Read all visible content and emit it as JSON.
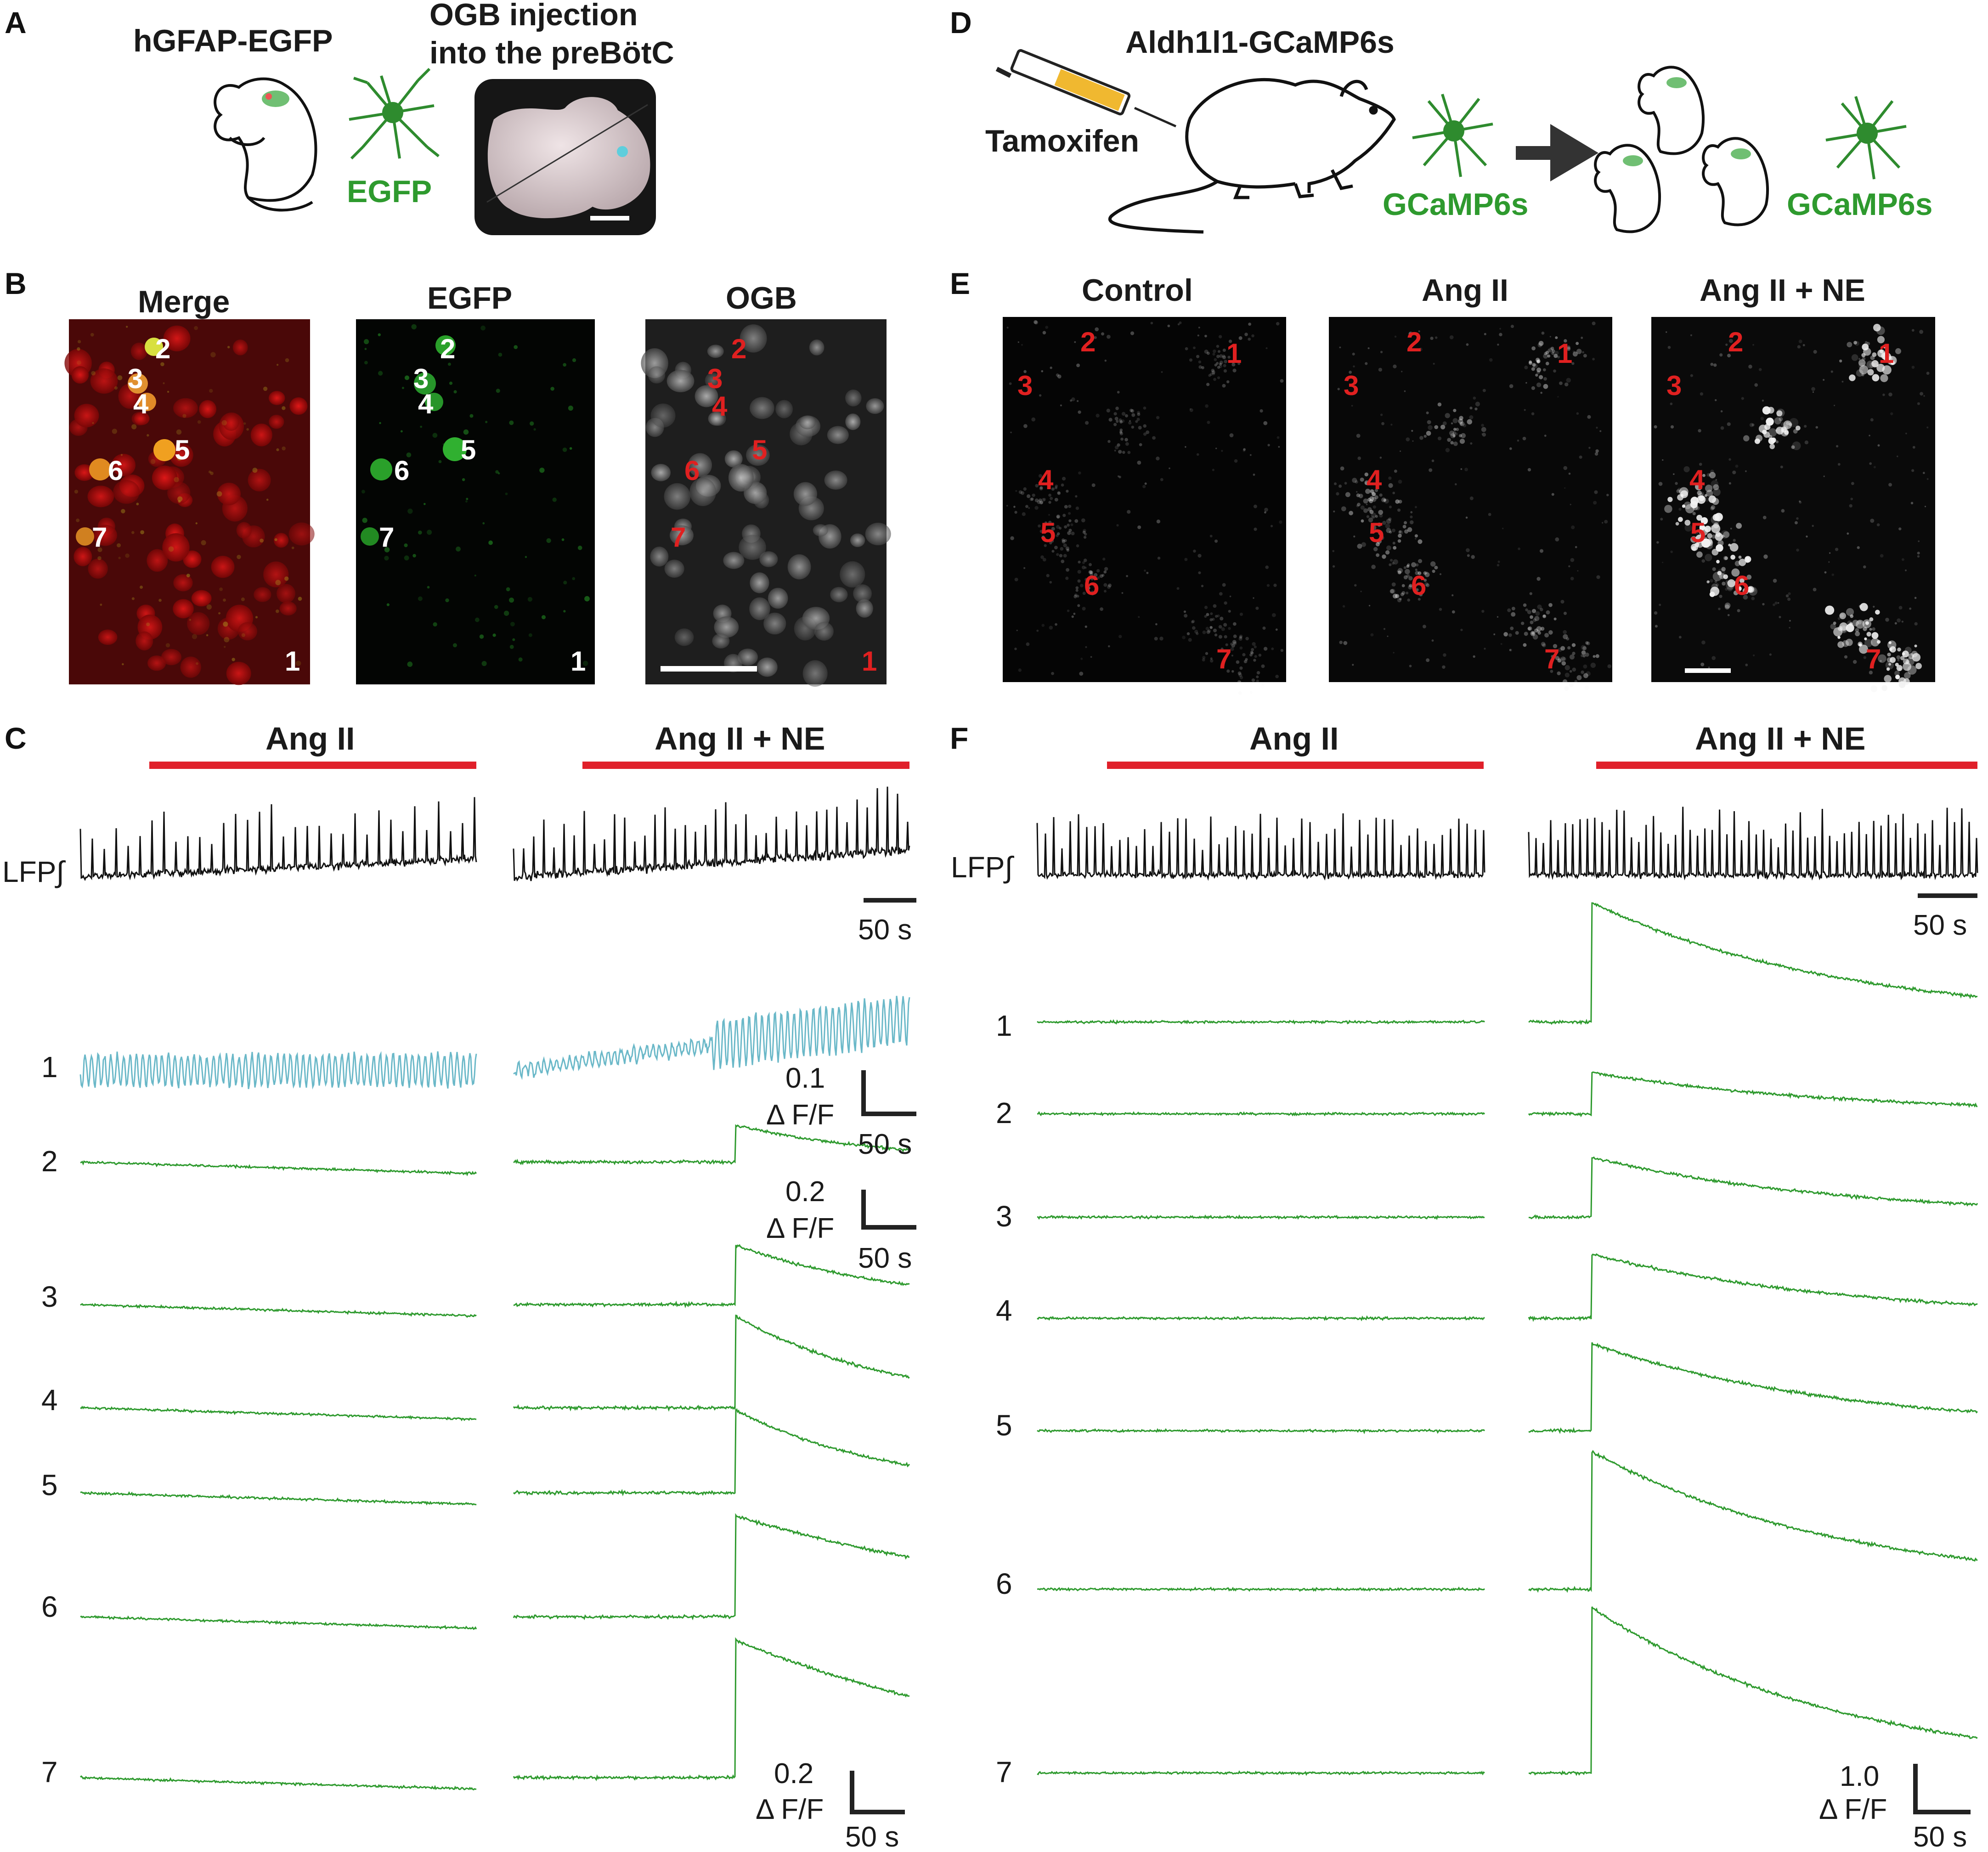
{
  "panels": {
    "A": {
      "label": "A",
      "mouse_label": "hGFAP-EGFP",
      "injection_label_line1": "OGB injection",
      "injection_label_line2": "into the preBötC",
      "cell_label": "EGFP"
    },
    "B": {
      "label": "B",
      "images": [
        {
          "title": "Merge",
          "corner": "1"
        },
        {
          "title": "EGFP",
          "corner": "1"
        },
        {
          "title": "OGB",
          "corner": "1"
        }
      ],
      "rois": [
        "2",
        "3",
        "4",
        "5",
        "6",
        "7"
      ]
    },
    "C": {
      "label": "C",
      "drug1": "Ang II",
      "drug2": "Ang II + NE",
      "lfp_label": "LFP∫",
      "lfp_scale_time": "50 s",
      "trace_labels": [
        "1",
        "2",
        "3",
        "4",
        "5",
        "6",
        "7"
      ],
      "scale1_df": "0.1",
      "scale1_unit": "Δ F/F",
      "scale1_time": "50 s",
      "scale2_df": "0.2",
      "scale2_unit": "Δ F/F",
      "scale2_time": "50 s",
      "scale3_df": "0.2",
      "scale3_unit": "Δ F/F",
      "scale3_time": "50 s"
    },
    "D": {
      "label": "D",
      "mouse_label": "Aldh1l1-GCaMP6s",
      "drug_label": "Tamoxifen",
      "cell_label1": "GCaMP6s",
      "cell_label2": "GCaMP6s"
    },
    "E": {
      "label": "E",
      "images": [
        {
          "title": "Control"
        },
        {
          "title": "Ang II"
        },
        {
          "title": "Ang II + NE"
        }
      ],
      "rois": [
        "1",
        "2",
        "3",
        "4",
        "5",
        "6",
        "7"
      ]
    },
    "F": {
      "label": "F",
      "drug1": "Ang II",
      "drug2": "Ang II + NE",
      "lfp_label": "LFP∫",
      "lfp_scale_time": "50 s",
      "trace_labels": [
        "1",
        "2",
        "3",
        "4",
        "5",
        "6",
        "7"
      ],
      "scale_df": "1.0",
      "scale_unit": "Δ F/F",
      "scale_time": "50 s"
    }
  },
  "colors": {
    "drug_bar": "#e0202a",
    "lfp": "#111111",
    "trace_green": "#2e9a2e",
    "trace_blue": "#6ab8c8",
    "roi_red": "#e02020"
  }
}
